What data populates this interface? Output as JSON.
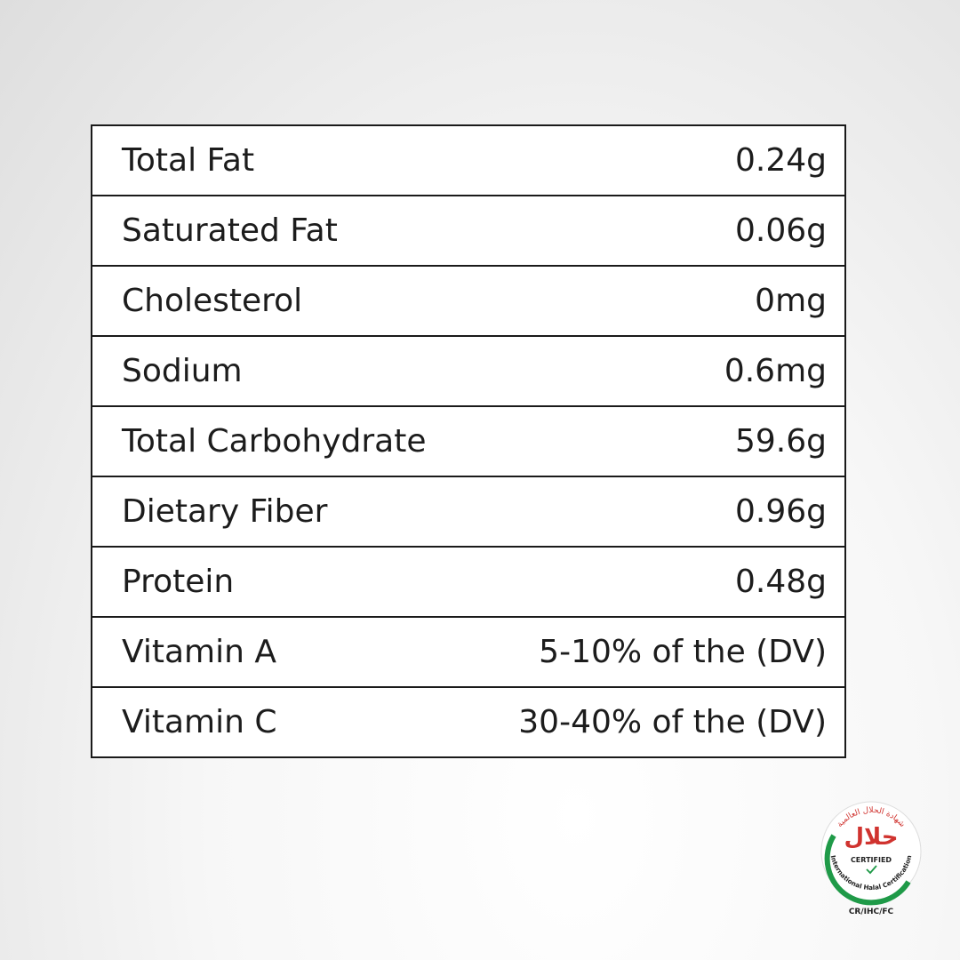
{
  "table": {
    "rows": [
      [
        "Total Fat",
        "0.24g"
      ],
      [
        "Saturated Fat",
        "0.06g"
      ],
      [
        "Cholesterol",
        "0mg"
      ],
      [
        "Sodium",
        "0.6mg"
      ],
      [
        "Total Carbohydrate",
        "59.6g"
      ],
      [
        "Dietary Fiber",
        "0.96g"
      ],
      [
        "Protein",
        "0.48g"
      ],
      [
        "Vitamin A",
        "5-10% of the (DV)"
      ],
      [
        "Vitamin C",
        "30-40% of the (DV)"
      ]
    ]
  },
  "badge": {
    "arabic_arc": "شهادة الحلال العالمية",
    "arabic_word": "حلال",
    "certified": "CERTIFIED",
    "arc_text": "International Halal Certification",
    "code": "CR/IHC/FC"
  }
}
